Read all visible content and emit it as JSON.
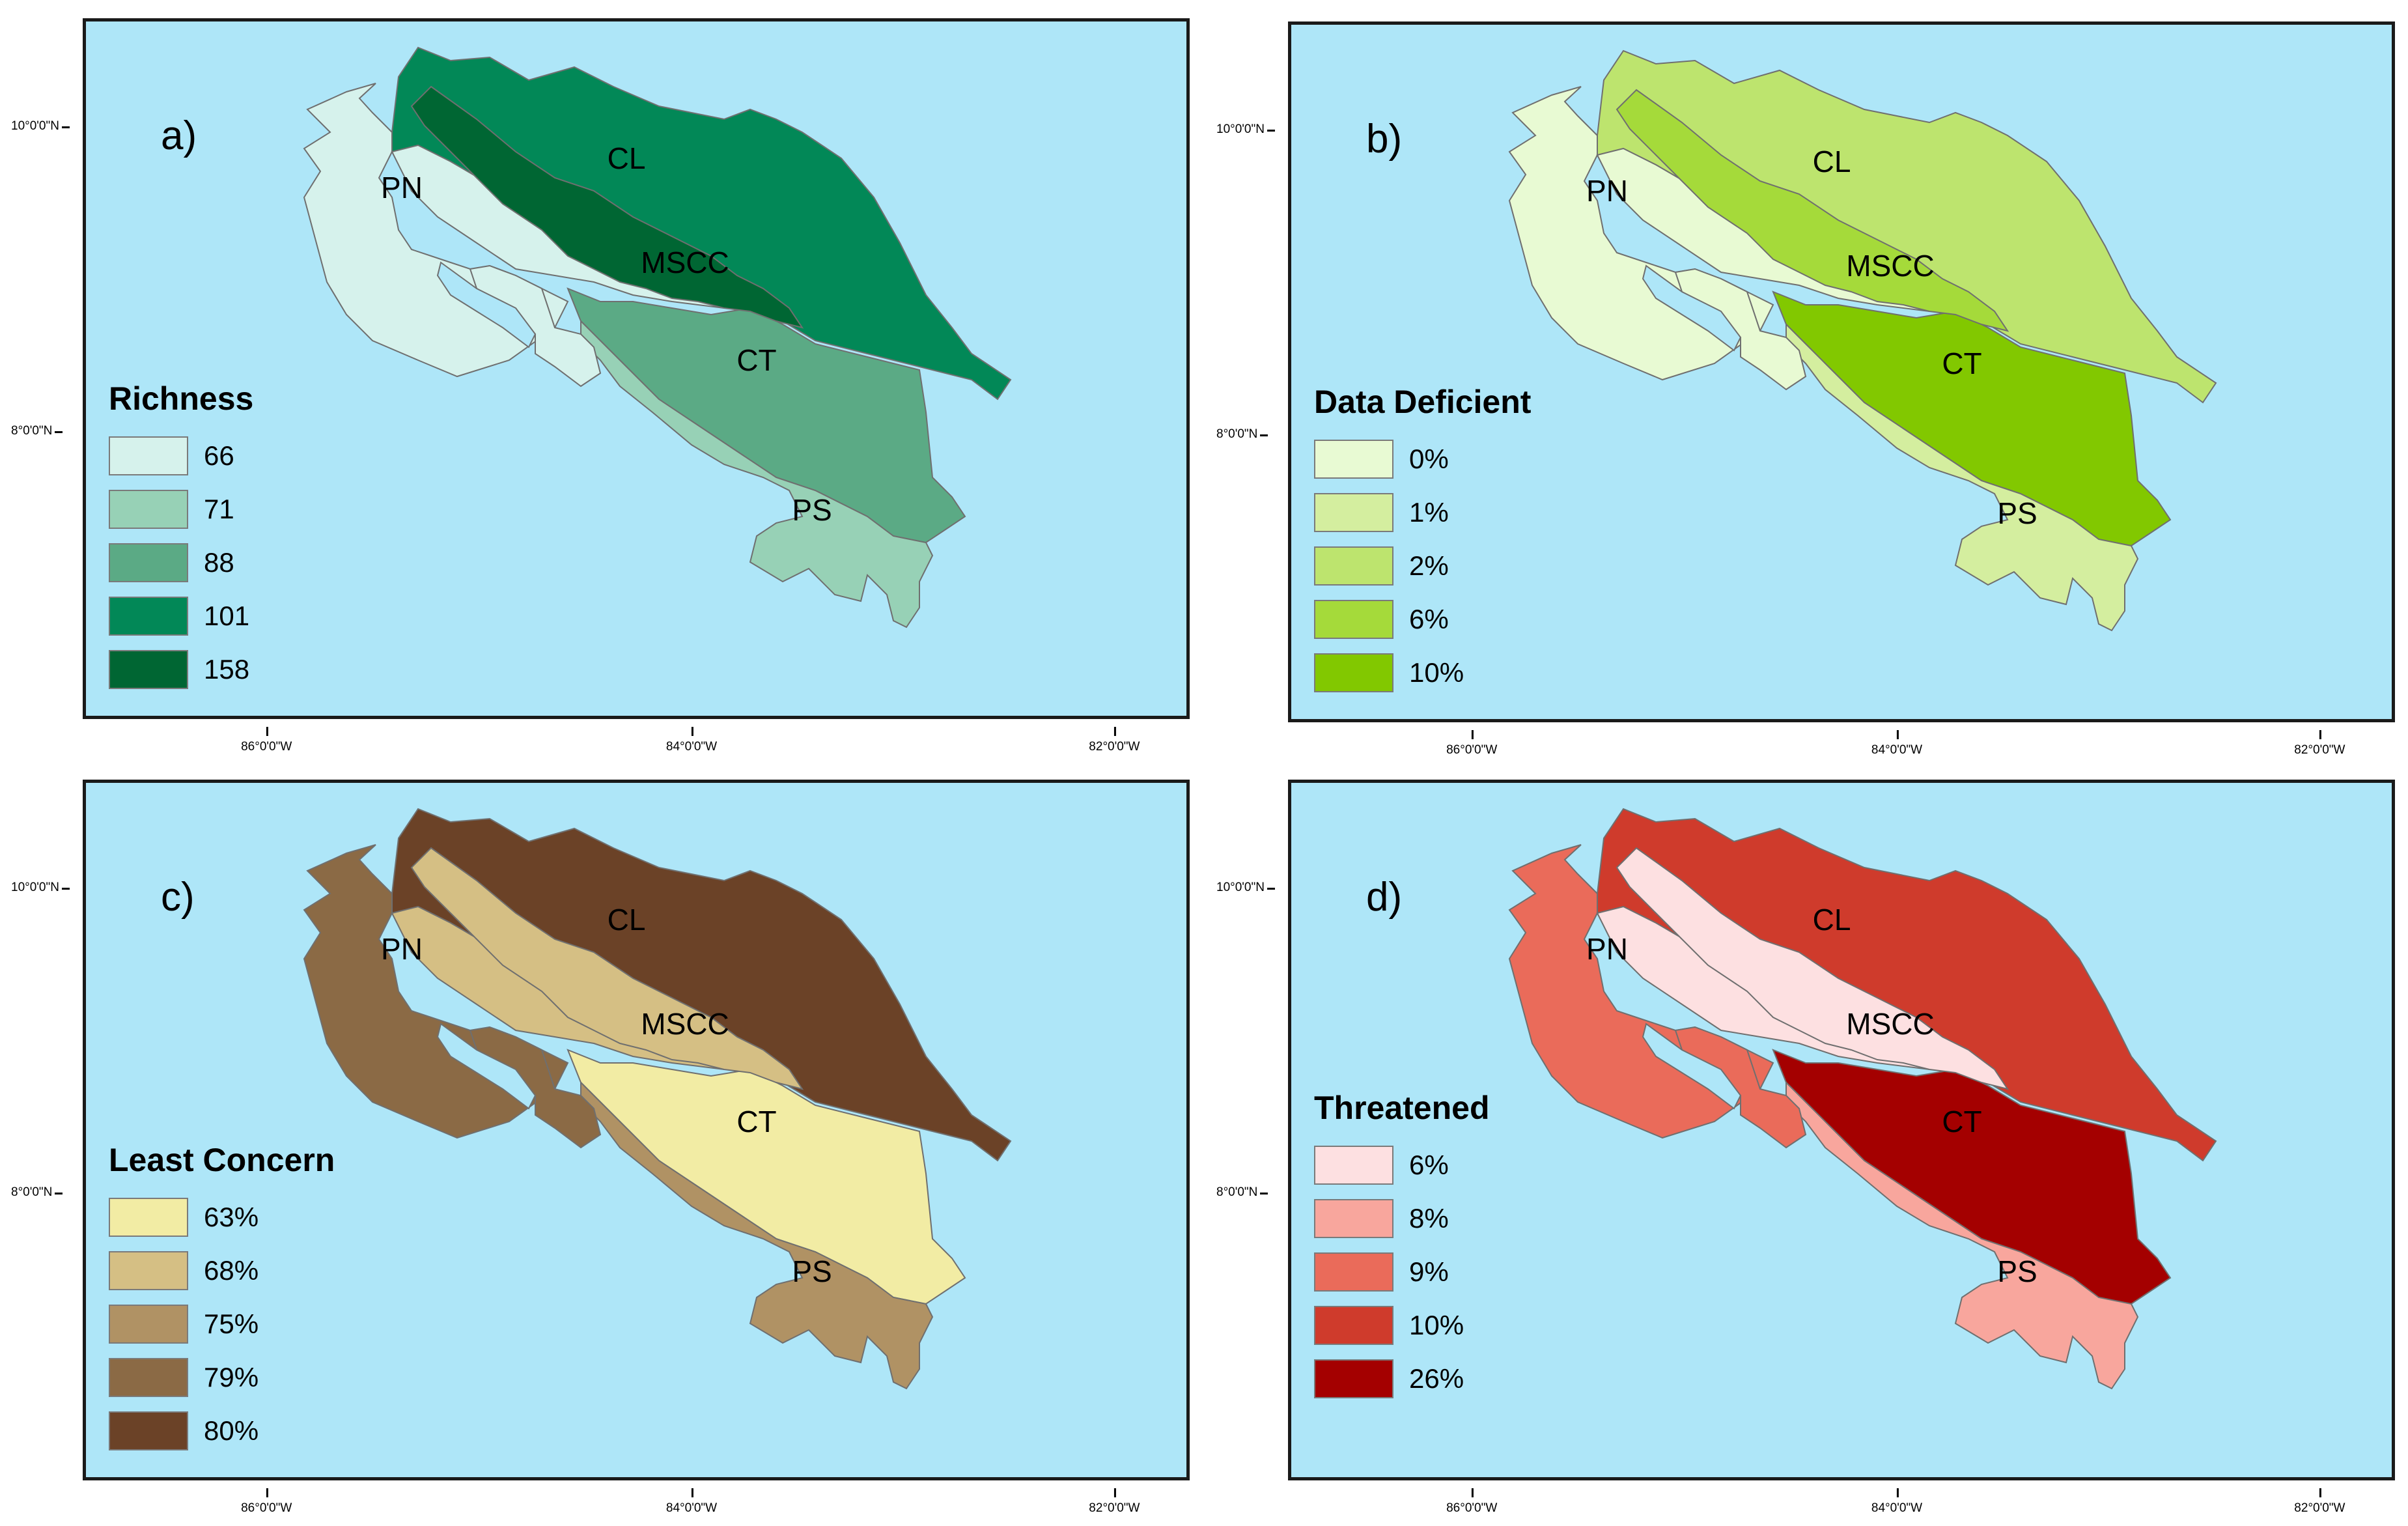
{
  "axes": {
    "lat_labels": [
      "10°0'0\"N",
      "8°0'0\"N"
    ],
    "lon_labels": [
      "86°0'0\"W",
      "84°0'0\"W",
      "82°0'0\"W"
    ]
  },
  "regions": [
    "CL",
    "PN",
    "MSCC",
    "CT",
    "PS"
  ],
  "panels": [
    {
      "letter": "a)",
      "legend_title": "Richness",
      "legend": [
        {
          "label": "66",
          "color": "#d6f2ec"
        },
        {
          "label": "71",
          "color": "#97d1b6"
        },
        {
          "label": "88",
          "color": "#5baa85"
        },
        {
          "label": "101",
          "color": "#028857"
        },
        {
          "label": "158",
          "color": "#006633"
        }
      ],
      "region_values": {
        "PN": "66",
        "PS": "71",
        "CT": "88",
        "CL": "101",
        "MSCC": "66",
        "highlands": "158"
      }
    },
    {
      "letter": "b)",
      "legend_title": "Data Deficient",
      "legend": [
        {
          "label": "0%",
          "color": "#e8fad3"
        },
        {
          "label": "1%",
          "color": "#d4ee9f"
        },
        {
          "label": "2%",
          "color": "#bde46e"
        },
        {
          "label": "6%",
          "color": "#a5da3a"
        },
        {
          "label": "10%",
          "color": "#82c800"
        }
      ],
      "region_values": {
        "PN": "0%",
        "PS": "1%",
        "CT": "10%",
        "CL": "2%",
        "MSCC": "0%",
        "highlands": "6%"
      }
    },
    {
      "letter": "c)",
      "legend_title": "Least Concern",
      "legend": [
        {
          "label": "63%",
          "color": "#f2eca4"
        },
        {
          "label": "68%",
          "color": "#d5bf84"
        },
        {
          "label": "75%",
          "color": "#b09264"
        },
        {
          "label": "79%",
          "color": "#8b6a45"
        },
        {
          "label": "80%",
          "color": "#6b4227"
        }
      ],
      "region_values": {
        "PN": "79%",
        "PS": "75%",
        "CT": "63%",
        "CL": "80%",
        "MSCC": "68%",
        "highlands": "68%"
      }
    },
    {
      "letter": "d)",
      "legend_title": "Threatened",
      "legend": [
        {
          "label": "6%",
          "color": "#fde0e1"
        },
        {
          "label": "8%",
          "color": "#f8a69d"
        },
        {
          "label": "9%",
          "color": "#ea6b5a"
        },
        {
          "label": "10%",
          "color": "#cf3b2c"
        },
        {
          "label": "26%",
          "color": "#a40000"
        }
      ],
      "region_values": {
        "PN": "9%",
        "PS": "8%",
        "CT": "26%",
        "CL": "10%",
        "MSCC": "6%",
        "highlands": "6%"
      }
    }
  ]
}
